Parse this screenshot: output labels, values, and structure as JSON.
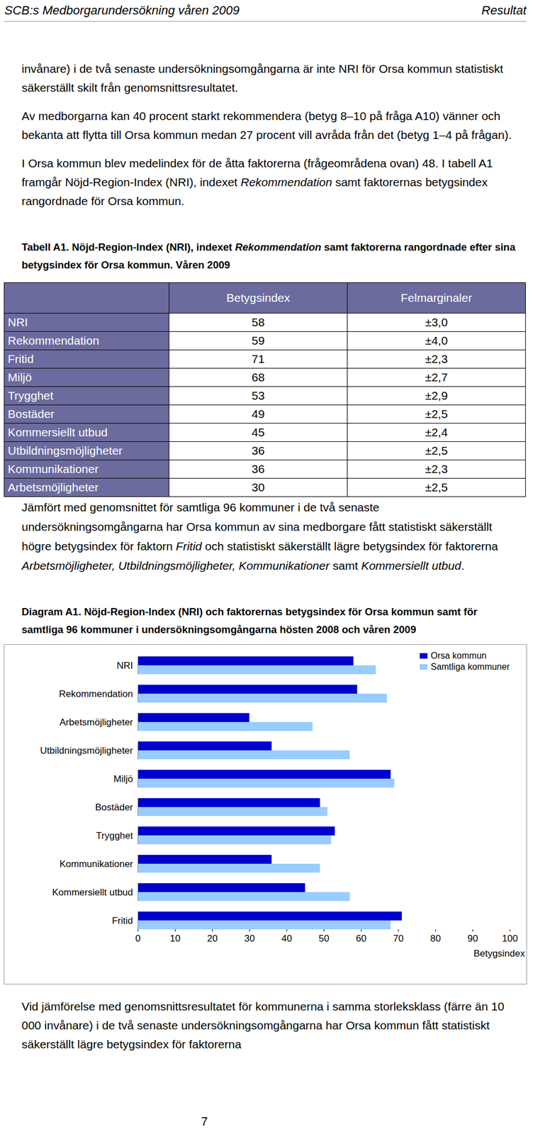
{
  "header": {
    "left": "SCB:s Medborgarundersökning våren 2009",
    "right": "Resultat"
  },
  "paragraphs_top": [
    [
      {
        "text": "invånare) i de två senaste undersökningsomgångarna är inte NRI för Orsa kommun statistiskt säkerställt skilt från genomsnittsresultatet."
      }
    ],
    [
      {
        "text": "Av medborgarna kan 40 procent starkt rekommendera (betyg 8–10 på fråga A10) vänner och bekanta att flytta till Orsa kommun medan 27 procent vill avråda från det (betyg 1–4 på frågan)."
      }
    ],
    [
      {
        "text": "I Orsa kommun blev medelindex för de åtta faktorerna (frågeområdena ovan) 48. I tabell A1 framgår Nöjd-Region-Index (NRI), indexet "
      },
      {
        "text": "Rekommendation",
        "italic": true
      },
      {
        "text": " samt faktorernas betygsindex rangordnade för Orsa kommun."
      }
    ]
  ],
  "table_caption": [
    {
      "text": "Tabell A1. Nöjd-Region-Index (NRI), indexet "
    },
    {
      "text": "Rekommendation",
      "italic": true
    },
    {
      "text": " samt faktorerna rangordnade efter sina betygsindex för Orsa kommun. Våren 2009"
    }
  ],
  "table": {
    "header": [
      "Betygsindex",
      "Felmarginaler"
    ],
    "rows": [
      [
        "NRI",
        58,
        "±3,0"
      ],
      [
        "Rekommendation",
        59,
        "±4,0"
      ],
      [
        "Fritid",
        71,
        "±2,3"
      ],
      [
        "Miljö",
        68,
        "±2,7"
      ],
      [
        "Trygghet",
        53,
        "±2,9"
      ],
      [
        "Bostäder",
        49,
        "±2,5"
      ],
      [
        "Kommersiellt utbud",
        45,
        "±2,4"
      ],
      [
        "Utbildningsmöjligheter",
        36,
        "±2,5"
      ],
      [
        "Kommunikationer",
        36,
        "±2,3"
      ],
      [
        "Arbetsmöjligheter",
        30,
        "±2,5"
      ]
    ]
  },
  "paragraph_after_table": [
    {
      "text": "Jämfört med genomsnittet för samtliga 96 kommuner i de två senaste undersökningsomgångarna har Orsa kommun av sina medborgare fått statistiskt säkerställt högre betygsindex för faktorn "
    },
    {
      "text": "Fritid",
      "italic": true
    },
    {
      "text": " och statistiskt säkerställt lägre betygsindex för faktorerna "
    },
    {
      "text": "Arbetsmöjligheter, Utbildningsmöjligheter, Kommunikationer",
      "italic": true
    },
    {
      "text": " samt "
    },
    {
      "text": "Kommersiellt utbud",
      "italic": true
    },
    {
      "text": "."
    }
  ],
  "diagram_caption": [
    {
      "text": "Diagram A1. Nöjd-Region-Index (NRI) och faktorernas betygsindex för Orsa kommun samt för samtliga 96 kommuner i undersökningsomgångarna hösten 2008 och våren 2009"
    }
  ],
  "chart_data": {
    "type": "bar",
    "orientation": "horizontal",
    "categories": [
      "NRI",
      "Rekommendation",
      "Arbetsmöjligheter",
      "Utbildningsmöjligheter",
      "Miljö",
      "Bostäder",
      "Trygghet",
      "Kommunikationer",
      "Kommersiellt utbud",
      "Fritid"
    ],
    "series": [
      {
        "name": "Orsa kommun",
        "color": "#0000cc",
        "values": [
          58,
          59,
          30,
          36,
          68,
          49,
          53,
          36,
          45,
          71
        ]
      },
      {
        "name": "Samtliga kommuner",
        "color": "#99ccff",
        "values": [
          64,
          67,
          47,
          57,
          69,
          51,
          52,
          49,
          57,
          68
        ]
      }
    ],
    "xlabel": "Betygsindex",
    "xlim": [
      0,
      100
    ],
    "xticks": [
      0,
      10,
      20,
      30,
      40,
      50,
      60,
      70,
      80,
      90,
      100
    ],
    "grid": false,
    "legend": "top-right"
  },
  "paragraph_bottom": [
    {
      "text": "Vid jämförelse med genomsnittsresultatet för kommunerna i samma storleksklass (färre än 10 000 invånare) i de två senaste undersökningsomgångarna har Orsa kommun fått statistiskt säkerställt lägre betygsindex för faktorerna"
    }
  ],
  "page_number": "7"
}
